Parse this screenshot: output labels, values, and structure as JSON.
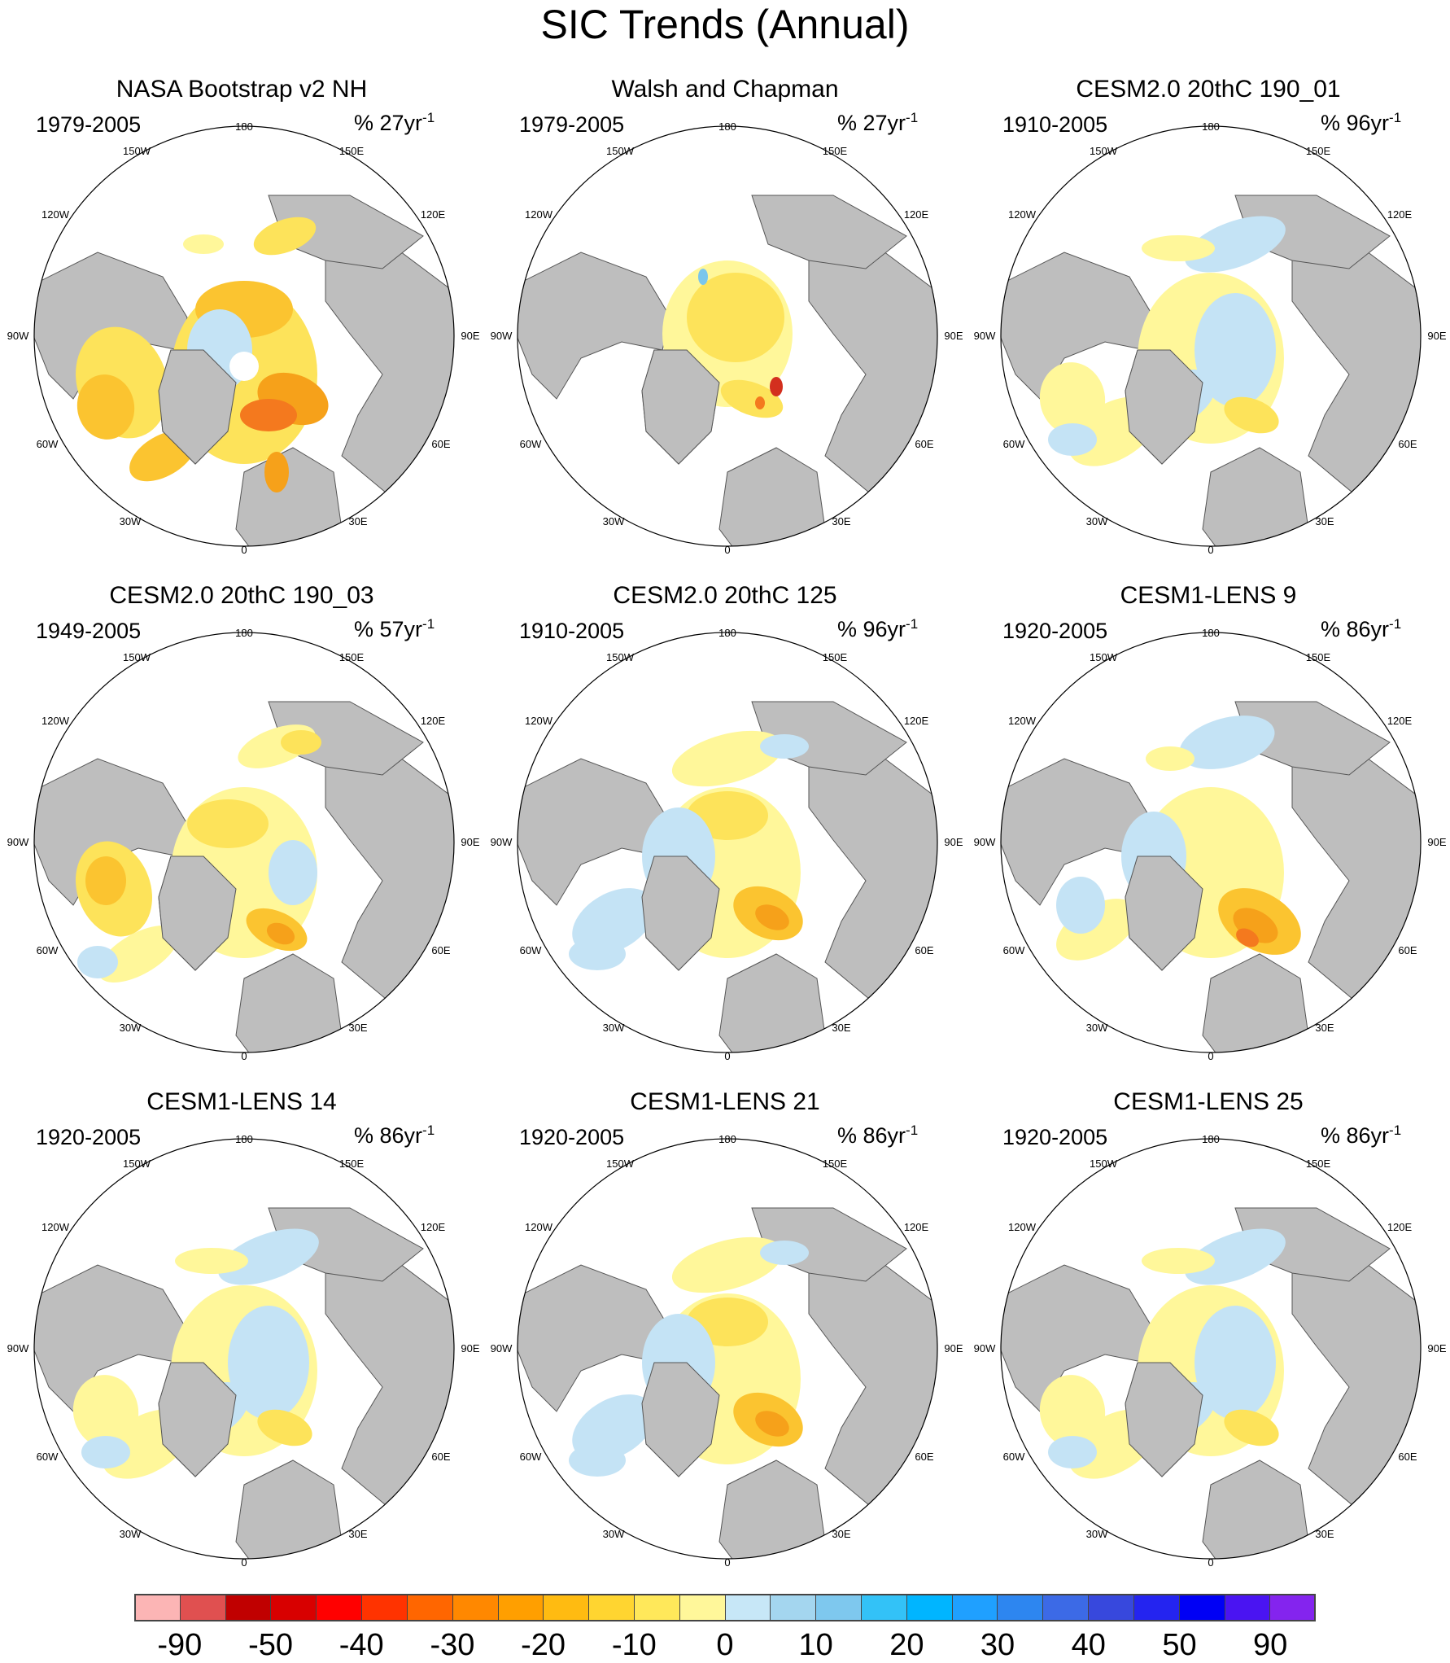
{
  "title": "SIC Trends (Annual)",
  "colors": {
    "land": "#bebebe",
    "ocean": "#ffffff",
    "outline": "#000000",
    "positive_trend": [
      "#c4e3f5",
      "#a3d4ef",
      "#7ac6ec"
    ],
    "negative_trend": [
      "#fff79a",
      "#fde35a",
      "#fbc430",
      "#f6a11a",
      "#f4791e",
      "#d32f1e"
    ]
  },
  "map_labels": {
    "top": "180",
    "bottom": "0",
    "upper_left": "150W",
    "upper_right": "150E",
    "left_upper": "120W",
    "right_upper": "120E",
    "left_mid": "90W",
    "right_mid": "90E",
    "left_lower": "60W",
    "right_lower": "60E",
    "lower_left": "30W",
    "lower_right": "30E"
  },
  "panels": [
    {
      "title": "NASA Bootstrap v2 NH",
      "period": "1979-2005",
      "units_prefix": "% 27yr",
      "units_exp": "-1",
      "pattern": "decline-strong"
    },
    {
      "title": "Walsh and Chapman",
      "period": "1979-2005",
      "units_prefix": "% 27yr",
      "units_exp": "-1",
      "pattern": "walsh"
    },
    {
      "title": "CESM2.0 20thC 190_01",
      "period": "1910-2005",
      "units_prefix": "% 96yr",
      "units_exp": "-1",
      "pattern": "mixed-blue"
    },
    {
      "title": "CESM2.0 20thC 190_03",
      "period": "1949-2005",
      "units_prefix": "% 57yr",
      "units_exp": "-1",
      "pattern": "decline-moderate"
    },
    {
      "title": "CESM2.0 20thC 125",
      "period": "1910-2005",
      "units_prefix": "% 96yr",
      "units_exp": "-1",
      "pattern": "mixed-orange"
    },
    {
      "title": "CESM1-LENS 9",
      "period": "1920-2005",
      "units_prefix": "% 86yr",
      "units_exp": "-1",
      "pattern": "barents-red"
    },
    {
      "title": "CESM1-LENS 14",
      "period": "1920-2005",
      "units_prefix": "% 86yr",
      "units_exp": "-1",
      "pattern": "mixed-blue"
    },
    {
      "title": "CESM1-LENS 21",
      "period": "1920-2005",
      "units_prefix": "% 86yr",
      "units_exp": "-1",
      "pattern": "mixed-orange"
    },
    {
      "title": "CESM1-LENS 25",
      "period": "1920-2005",
      "units_prefix": "% 86yr",
      "units_exp": "-1",
      "pattern": "mixed-blue"
    }
  ],
  "colorbar": {
    "colors": [
      "#fcb5b5",
      "#e05050",
      "#c00000",
      "#d80000",
      "#ff0000",
      "#ff3300",
      "#ff6600",
      "#ff8800",
      "#ff9f00",
      "#ffbb11",
      "#ffd530",
      "#ffe85a",
      "#fff79a",
      "#c7e7f7",
      "#a4d6ef",
      "#7ec8ee",
      "#33c2f7",
      "#00b5ff",
      "#1fa0ff",
      "#2d86f0",
      "#3c6ae6",
      "#3748dd",
      "#2424f0",
      "#0000f5",
      "#4a14f2",
      "#8424ee"
    ],
    "labels": [
      "-90",
      "-50",
      "-40",
      "-30",
      "-20",
      "-10",
      "0",
      "10",
      "20",
      "30",
      "40",
      "50",
      "90"
    ]
  }
}
